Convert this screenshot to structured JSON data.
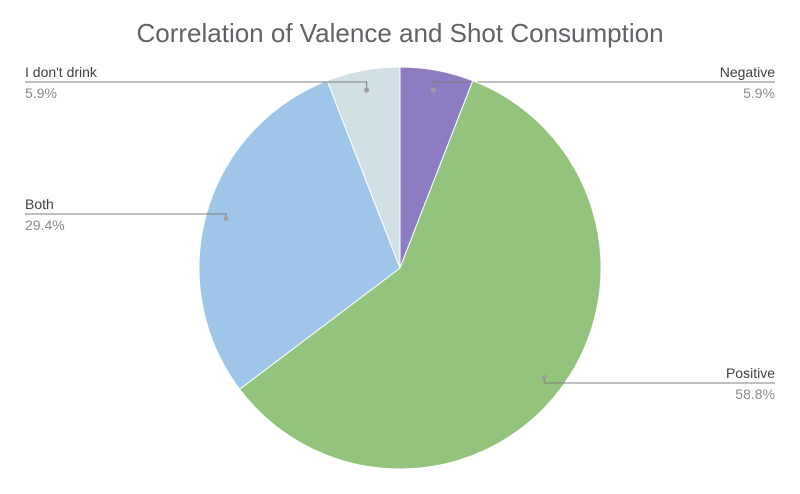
{
  "chart_data": {
    "type": "pie",
    "title": "Correlation of Valence and Shot Consumption",
    "slices": [
      {
        "label": "Negative",
        "value": 5.9,
        "display": "5.9%",
        "color": "#8e7cc3"
      },
      {
        "label": "Positive",
        "value": 58.8,
        "display": "58.8%",
        "color": "#93c47d"
      },
      {
        "label": "Both",
        "value": 29.4,
        "display": "29.4%",
        "color": "#9fc5e8"
      },
      {
        "label": "I don't drink",
        "value": 5.9,
        "display": "5.9%",
        "color": "#d0e0e3"
      }
    ],
    "label_sides": [
      "right",
      "right",
      "left",
      "left"
    ],
    "leader_line_color": "#7f7f7f"
  }
}
